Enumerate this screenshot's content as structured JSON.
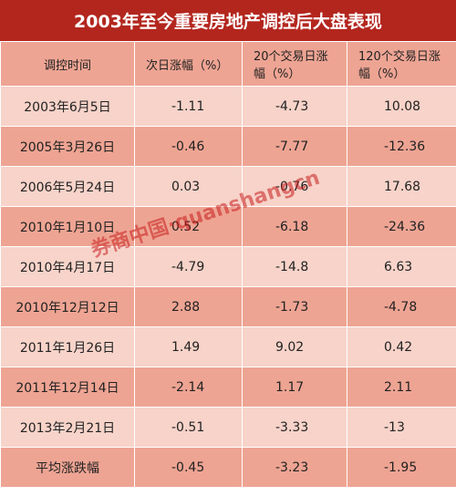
{
  "title": "2003年至今重要房地产调控后大盘表现",
  "table": {
    "header": [
      "调控时间",
      "次日涨幅（%）",
      "20个交易日涨幅（%）",
      "120个交易日涨幅（%）"
    ],
    "rows": [
      [
        "2003年6月5日",
        -1.11,
        -4.73,
        10.08
      ],
      [
        "2005年3月26日",
        -0.46,
        -7.77,
        -12.36
      ],
      [
        "2006年5月24日",
        0.03,
        -0.76,
        17.68
      ],
      [
        "2010年1月10日",
        0.52,
        -6.18,
        -24.36
      ],
      [
        "2010年4月17日",
        -4.79,
        -14.8,
        6.63
      ],
      [
        "2010年12月12日",
        2.88,
        -1.73,
        -4.78
      ],
      [
        "2011年1月26日",
        1.49,
        9.02,
        0.42
      ],
      [
        "2011年12月14日",
        -2.14,
        1.17,
        2.11
      ],
      [
        "2013年2月21日",
        -0.51,
        -3.33,
        -13
      ],
      [
        "平均涨跌幅",
        -0.45,
        -3.23,
        -1.95
      ]
    ]
  },
  "watermark": "券商中国·quanshangcn"
}
